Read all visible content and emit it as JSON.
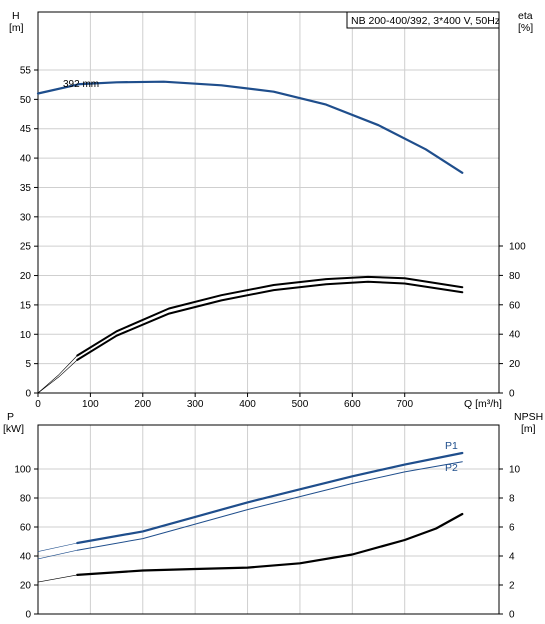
{
  "chart_data": [
    {
      "type": "line",
      "name": "head-chart",
      "title": "NB 200-400/392, 3*400 V, 50Hz",
      "left_axis": {
        "label_line1": "H",
        "label_line2": "[m]",
        "range": [
          0,
          60
        ],
        "ticks": [
          0,
          5,
          10,
          15,
          20,
          25,
          30,
          35,
          40,
          45,
          50,
          55
        ]
      },
      "right_axis": {
        "label_line1": "eta",
        "label_line2": "[%]",
        "range": [
          0,
          100
        ],
        "ticks": [
          0,
          20,
          40,
          60,
          80,
          100
        ]
      },
      "x_axis": {
        "label": "Q [m³/h]",
        "range": [
          0,
          880
        ],
        "ticks": [
          0,
          100,
          200,
          300,
          400,
          500,
          600,
          700
        ]
      },
      "grid": true,
      "curve_label": "392 mm",
      "series": [
        {
          "key": "head",
          "axis": "left",
          "color": "#1f4e8c",
          "width": 2.2,
          "points": [
            [
              0,
              51
            ],
            [
              80,
              52.6
            ],
            [
              150,
              52.9
            ],
            [
              240,
              53.0
            ],
            [
              350,
              52.4
            ],
            [
              450,
              51.3
            ],
            [
              550,
              49.1
            ],
            [
              650,
              45.6
            ],
            [
              740,
              41.5
            ],
            [
              810,
              37.5
            ]
          ]
        },
        {
          "key": "head-ext",
          "axis": "left",
          "color": "#1f4e8c",
          "width": 0.7,
          "points": [
            [
              0,
              51
            ],
            [
              40,
              51.9
            ],
            [
              80,
              52.6
            ]
          ]
        },
        {
          "key": "eta-1",
          "axis": "right",
          "color": "#000000",
          "width": 2.0,
          "points": [
            [
              75,
              22.5
            ],
            [
              150,
              39
            ],
            [
              250,
              54
            ],
            [
              350,
              63
            ],
            [
              450,
              70
            ],
            [
              550,
              74
            ],
            [
              630,
              75.7
            ],
            [
              700,
              74.5
            ],
            [
              810,
              68.5
            ]
          ]
        },
        {
          "key": "eta-2",
          "axis": "right",
          "color": "#000000",
          "width": 2.0,
          "points": [
            [
              75,
              25.5
            ],
            [
              150,
              42
            ],
            [
              250,
              57.5
            ],
            [
              350,
              66.5
            ],
            [
              450,
              73.5
            ],
            [
              550,
              77.5
            ],
            [
              630,
              79
            ],
            [
              700,
              78
            ],
            [
              810,
              72
            ]
          ]
        },
        {
          "key": "eta-ext-1",
          "axis": "right",
          "color": "#000000",
          "width": 0.6,
          "points": [
            [
              0,
              0
            ],
            [
              40,
              11
            ],
            [
              75,
              22.5
            ]
          ]
        },
        {
          "key": "eta-ext-2",
          "axis": "right",
          "color": "#000000",
          "width": 0.6,
          "points": [
            [
              0,
              0
            ],
            [
              40,
              12.5
            ],
            [
              75,
              25.5
            ]
          ]
        }
      ]
    },
    {
      "type": "line",
      "name": "power-npsh-chart",
      "left_axis": {
        "label_line1": "P",
        "label_line2": "[kW]",
        "range": [
          0,
          120
        ],
        "ticks": [
          0,
          20,
          40,
          60,
          80,
          100
        ]
      },
      "right_axis": {
        "label_line1": "NPSH",
        "label_line2": "[m]",
        "range": [
          0,
          12
        ],
        "ticks": [
          0,
          2,
          4,
          6,
          8,
          10
        ]
      },
      "x_range": [
        0,
        880
      ],
      "grid": true,
      "series": [
        {
          "key": "P1",
          "label": "P1",
          "axis": "left",
          "color": "#1f4e8c",
          "width": 2.2,
          "points": [
            [
              75,
              49
            ],
            [
              200,
              57
            ],
            [
              300,
              67
            ],
            [
              400,
              77
            ],
            [
              500,
              86
            ],
            [
              600,
              95
            ],
            [
              700,
              103
            ],
            [
              810,
              111
            ]
          ]
        },
        {
          "key": "P2",
          "label": "P2",
          "axis": "left",
          "color": "#1f4e8c",
          "width": 1.0,
          "points": [
            [
              75,
              44
            ],
            [
              200,
              52
            ],
            [
              300,
              62
            ],
            [
              400,
              72
            ],
            [
              500,
              81
            ],
            [
              600,
              90
            ],
            [
              700,
              98
            ],
            [
              810,
              105
            ]
          ]
        },
        {
          "key": "P1-ext",
          "axis": "left",
          "color": "#1f4e8c",
          "width": 0.6,
          "points": [
            [
              0,
              43
            ],
            [
              75,
              49
            ]
          ]
        },
        {
          "key": "P2-ext",
          "axis": "left",
          "color": "#1f4e8c",
          "width": 0.6,
          "points": [
            [
              0,
              38
            ],
            [
              75,
              44
            ]
          ]
        },
        {
          "key": "npsh",
          "axis": "right",
          "color": "#000000",
          "width": 2.2,
          "points": [
            [
              75,
              2.7
            ],
            [
              200,
              3.0
            ],
            [
              300,
              3.1
            ],
            [
              400,
              3.2
            ],
            [
              500,
              3.5
            ],
            [
              600,
              4.1
            ],
            [
              700,
              5.1
            ],
            [
              760,
              5.9
            ],
            [
              810,
              6.9
            ]
          ]
        },
        {
          "key": "npsh-ext",
          "axis": "right",
          "color": "#000000",
          "width": 0.6,
          "points": [
            [
              0,
              2.2
            ],
            [
              75,
              2.7
            ]
          ]
        }
      ]
    }
  ]
}
